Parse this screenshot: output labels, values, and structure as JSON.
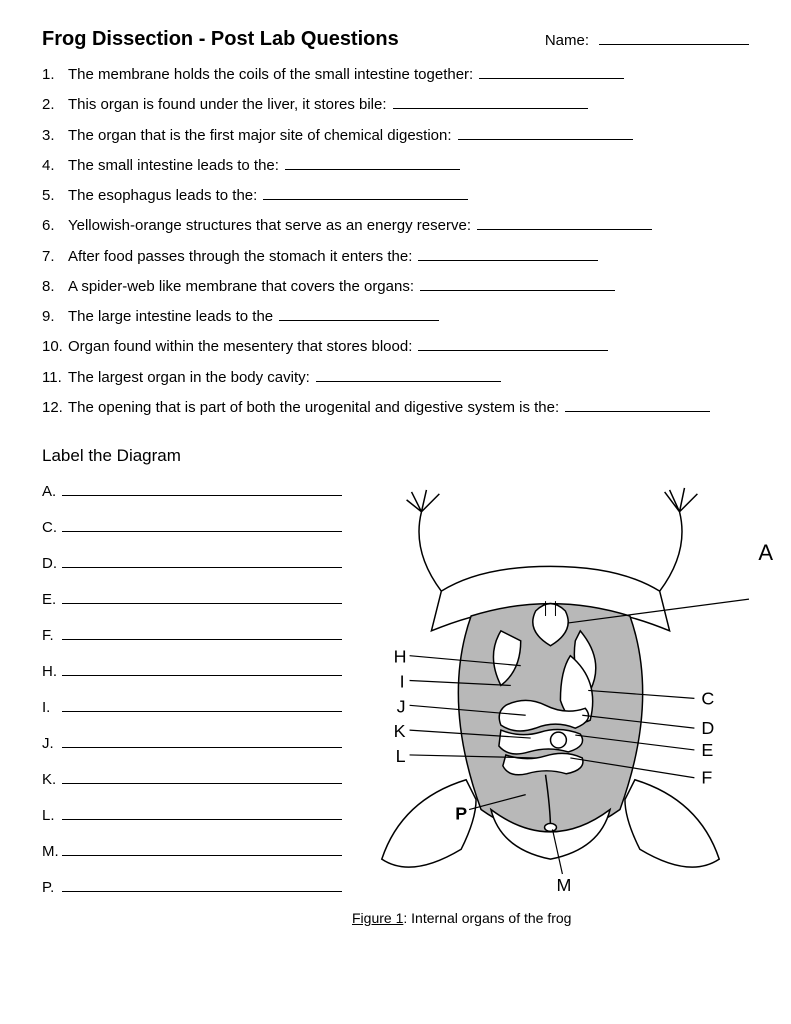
{
  "header": {
    "title": "Frog Dissection - Post Lab Questions",
    "name_label": "Name:"
  },
  "questions": [
    {
      "num": "1.",
      "text": "The membrane holds the coils of the small intestine together:",
      "blank_w": 145
    },
    {
      "num": "2.",
      "text": "This organ is found under the liver, it stores bile:",
      "blank_w": 195
    },
    {
      "num": "3.",
      "text": "The organ that is the first major site of chemical digestion:",
      "blank_w": 175
    },
    {
      "num": "4.",
      "text": "The small intestine leads to the:",
      "blank_w": 175
    },
    {
      "num": "5.",
      "text": "The esophagus leads to the:",
      "blank_w": 205
    },
    {
      "num": "6.",
      "text": "Yellowish-orange structures that serve as an energy reserve:",
      "blank_w": 175
    },
    {
      "num": "7.",
      "text": "After food passes through the stomach it enters the:",
      "blank_w": 180
    },
    {
      "num": "8.",
      "text": "A spider-web like membrane that covers the organs:",
      "blank_w": 195
    },
    {
      "num": "9.",
      "text": "The large intestine leads to the",
      "blank_w": 160
    },
    {
      "num": "10.",
      "text": "Organ found within the mesentery that stores blood:",
      "blank_w": 190
    },
    {
      "num": "11.",
      "text": "The largest organ in the body cavity:",
      "blank_w": 185
    },
    {
      "num": "12.",
      "text": "The opening that is part of both the urogenital and digestive system is the:",
      "blank_w": 145
    }
  ],
  "section_title": "Label the Diagram",
  "labels": [
    "A.",
    "C.",
    "D.",
    "E.",
    "F.",
    "H.",
    "I.",
    "J.",
    "K.",
    "L.",
    "M.",
    "P."
  ],
  "diagram": {
    "stroke": "#000000",
    "fill_body": "#b8b8b8",
    "fill_white": "#ffffff",
    "letter_fontsize": 18,
    "big_letter_fontsize": 22,
    "caption_fig": "Figure 1",
    "caption_text": ": Internal organs of the frog",
    "letters_left": [
      "H",
      "I",
      "J",
      "K",
      "L"
    ],
    "letters_right": [
      "C",
      "D",
      "E",
      "F"
    ],
    "letter_P": "P",
    "letter_M": "M",
    "letter_A": "A"
  }
}
